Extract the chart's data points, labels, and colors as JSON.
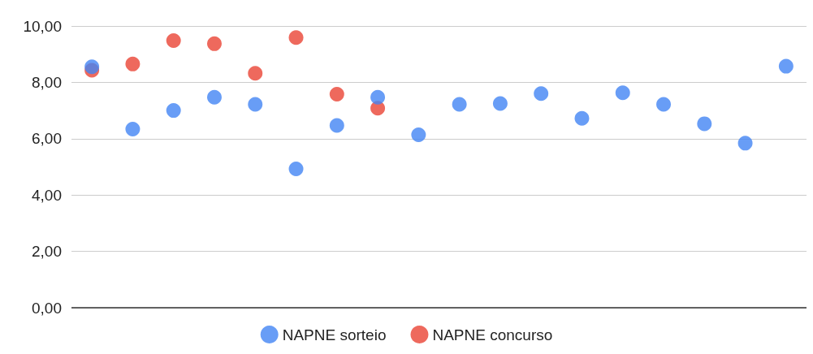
{
  "chart_data": {
    "type": "scatter",
    "categories": [
      null,
      null,
      null,
      null,
      null,
      null,
      null,
      null,
      null,
      null,
      null,
      null,
      null,
      null,
      null,
      null,
      null,
      null
    ],
    "series": [
      {
        "name": "NAPNE sorteio",
        "color": "#4285f4",
        "values": [
          8.55,
          6.34,
          7.0,
          7.47,
          7.22,
          4.93,
          6.47,
          7.47,
          6.14,
          7.22,
          7.25,
          7.6,
          6.72,
          7.63,
          7.22,
          6.53,
          5.84,
          8.57
        ]
      },
      {
        "name": "NAPNE concurso",
        "color": "#ea4335",
        "values": [
          8.43,
          8.65,
          9.48,
          9.37,
          8.32,
          9.59,
          7.58,
          7.08,
          null,
          null,
          null,
          null,
          null,
          null,
          null,
          null,
          null,
          null
        ]
      }
    ],
    "ylim": [
      0,
      10
    ],
    "yticks": [
      {
        "value": 0,
        "label": "0,00"
      },
      {
        "value": 2,
        "label": "2,00"
      },
      {
        "value": 4,
        "label": "4,00"
      },
      {
        "value": 6,
        "label": "6,00"
      },
      {
        "value": 8,
        "label": "8,00"
      },
      {
        "value": 10,
        "label": "10,00"
      }
    ],
    "grid": "y",
    "legend": "bottom",
    "marker": "circle"
  }
}
